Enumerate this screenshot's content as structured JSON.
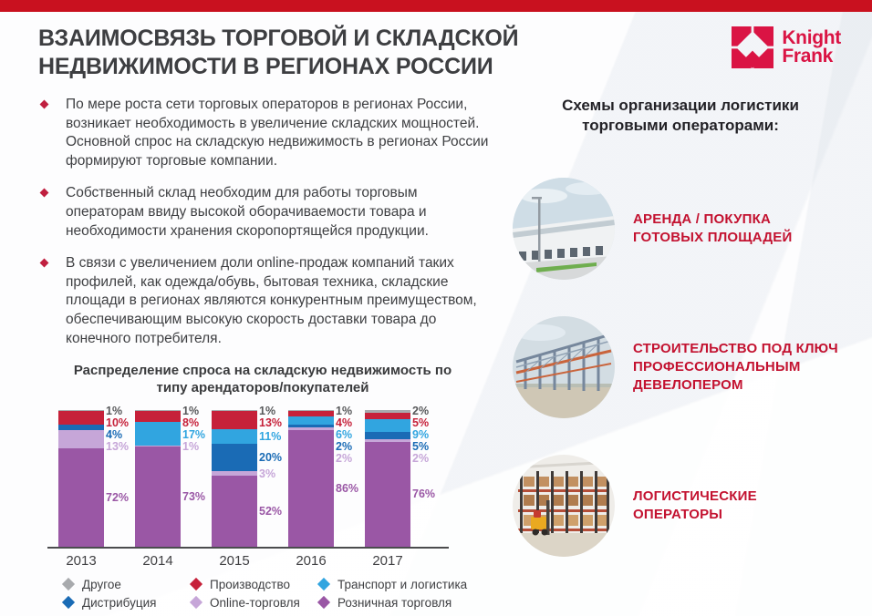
{
  "slide": {
    "title": "ВЗАИМОСВЯЗЬ ТОРГОВОЙ И СКЛАДСКОЙ\nНЕДВИЖИМОСТИ В РЕГИОНАХ РОССИИ",
    "brand": {
      "name": "Knight\nFrank",
      "logo_icon": "knight-frank-logo-icon",
      "brand_red": "#da1444"
    },
    "accent_red": "#c9111f"
  },
  "bullets": [
    "По мере роста сети торговых операторов в регионах России, возникает необходимость в увеличение складских мощностей. Основной спрос на складскую недвижимость в регионах России формируют торговые компании.",
    "Собственный склад необходим для работы торговым операторам ввиду высокой оборачиваемости товара и необходимости хранения скоропортящейся продукции.",
    "В связи с увеличением доли online-продаж компаний таких профилей, как одежда/обувь, бытовая техника, складские площади в регионах являются конкурентным преимуществом, обеспечивающим высокую скорость доставки товара до конечного потребителя."
  ],
  "chart_data": {
    "type": "bar",
    "stacked": true,
    "title": "Распределение спроса на складскую недвижимость по\nтипу арендаторов/покупателей",
    "categories": [
      "2013",
      "2014",
      "2015",
      "2016",
      "2017"
    ],
    "series": [
      {
        "name": "Другое",
        "color": "#a8aaad",
        "label_color": "#58595b",
        "values": [
          1,
          1,
          1,
          1,
          2
        ]
      },
      {
        "name": "Производство",
        "color": "#c6213a",
        "values": [
          10,
          8,
          13,
          4,
          5
        ]
      },
      {
        "name": "Транспорт и логистика",
        "color": "#31a5e0",
        "values": [
          0,
          17,
          11,
          6,
          9
        ]
      },
      {
        "name": "Дистрибуция",
        "color": "#1a6bb5",
        "values": [
          4,
          0,
          20,
          2,
          5
        ]
      },
      {
        "name": "Online-торговля",
        "color": "#c6a6d8",
        "values": [
          13,
          1,
          3,
          2,
          2
        ]
      },
      {
        "name": "Розничная торговля",
        "color": "#9a57a5",
        "values": [
          72,
          73,
          52,
          86,
          76
        ]
      }
    ],
    "value_suffix": "%",
    "legend": [
      "Другое",
      "Производство",
      "Транспорт и логистика",
      "Дистрибуция",
      "Online-торговля",
      "Розничная торговля"
    ],
    "legend_position": "bottom",
    "grid": false,
    "ylim": [
      0,
      100
    ],
    "xlabel": "",
    "ylabel": ""
  },
  "right_panel": {
    "heading": "Схемы организации логистики\nторговыми операторами:",
    "items": [
      {
        "label": "АРЕНДА / ПОКУПКА\nГОТОВЫХ ПЛОЩАДЕЙ",
        "photo": "warehouse-exterior"
      },
      {
        "label": "СТРОИТЕЛЬСТВО ПОД КЛЮЧ\nПРОФЕССИОНАЛЬНЫМ\nДЕВЕЛОПЕРОМ",
        "photo": "construction-site"
      },
      {
        "label": "ЛОГИСТИЧЕСКИЕ ОПЕРАТОРЫ",
        "photo": "warehouse-interior"
      }
    ]
  }
}
